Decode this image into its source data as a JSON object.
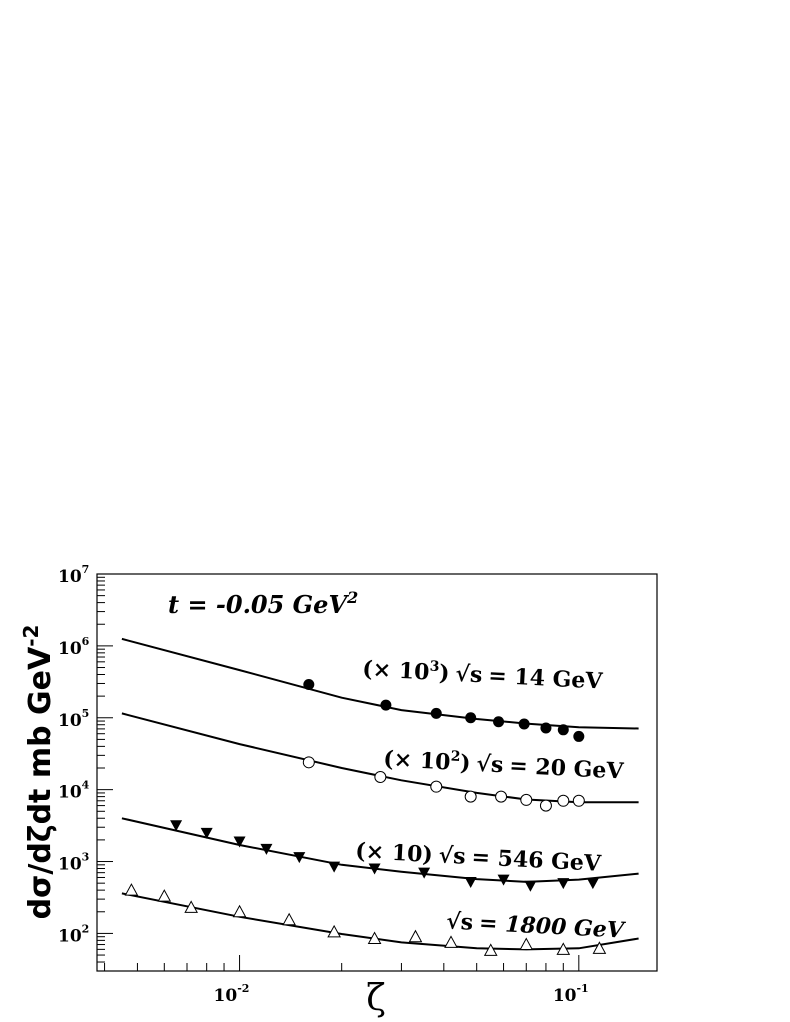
{
  "chart_data": {
    "type": "scatter",
    "title": "",
    "xlabel": "ζ",
    "ylabel": "dσ/dζdt mb GeV",
    "ylabel_sup": "-2",
    "x_scale": "log",
    "y_scale": "log",
    "xlim": [
      0.0038,
      0.17
    ],
    "ylim": [
      30,
      10000000
    ],
    "x_ticks": [
      {
        "value": 0.01,
        "base": "10",
        "exp": "-2"
      },
      {
        "value": 0.1,
        "base": "10",
        "exp": "-1"
      }
    ],
    "y_ticks": [
      {
        "value": 100,
        "base": "10",
        "exp": "2"
      },
      {
        "value": 1000,
        "base": "10",
        "exp": "3"
      },
      {
        "value": 10000,
        "base": "10",
        "exp": "4"
      },
      {
        "value": 100000,
        "base": "10",
        "exp": "5"
      },
      {
        "value": 1000000,
        "base": "10",
        "exp": "6"
      },
      {
        "value": 10000000,
        "base": "10",
        "exp": "7"
      }
    ],
    "grid": false,
    "annotation": {
      "text": "t = -0.05 GeV",
      "sup": "2"
    },
    "series": [
      {
        "label": {
          "mult_base": "(× 10",
          "mult_exp": "3",
          "mult_close": ")",
          "sqrt": "√s",
          "energy": "= 14 GeV"
        },
        "marker": "filled-circle",
        "points": [
          [
            0.016,
            290000
          ],
          [
            0.027,
            150000
          ],
          [
            0.038,
            115000
          ],
          [
            0.048,
            100000
          ],
          [
            0.058,
            88000
          ],
          [
            0.069,
            82000
          ],
          [
            0.08,
            72000
          ],
          [
            0.09,
            68000
          ],
          [
            0.1,
            55000
          ]
        ],
        "curve": [
          [
            0.0045,
            1250000
          ],
          [
            0.01,
            460000
          ],
          [
            0.02,
            190000
          ],
          [
            0.03,
            128000
          ],
          [
            0.05,
            96000
          ],
          [
            0.07,
            83000
          ],
          [
            0.1,
            74000
          ],
          [
            0.15,
            71000
          ]
        ]
      },
      {
        "label": {
          "mult_base": "(× 10",
          "mult_exp": "2",
          "mult_close": ")",
          "sqrt": "√s",
          "energy": "= 20 GeV"
        },
        "marker": "open-circle",
        "points": [
          [
            0.016,
            24000
          ],
          [
            0.026,
            15000
          ],
          [
            0.038,
            11000
          ],
          [
            0.048,
            8000
          ],
          [
            0.059,
            8000
          ],
          [
            0.07,
            7200
          ],
          [
            0.08,
            6000
          ],
          [
            0.09,
            7000
          ],
          [
            0.1,
            7000
          ]
        ],
        "curve": [
          [
            0.0045,
            115000
          ],
          [
            0.01,
            43000
          ],
          [
            0.02,
            20000
          ],
          [
            0.03,
            13500
          ],
          [
            0.05,
            9000
          ],
          [
            0.07,
            7300
          ],
          [
            0.1,
            6700
          ],
          [
            0.15,
            6700
          ]
        ]
      },
      {
        "label": {
          "mult_base": "(× 10)",
          "mult_exp": "",
          "mult_close": "",
          "sqrt": "√s",
          "energy": "= 546 GeV"
        },
        "marker": "filled-triangle-down",
        "points": [
          [
            0.0065,
            3200
          ],
          [
            0.008,
            2500
          ],
          [
            0.01,
            1900
          ],
          [
            0.012,
            1500
          ],
          [
            0.015,
            1150
          ],
          [
            0.019,
            850
          ],
          [
            0.025,
            800
          ],
          [
            0.035,
            700
          ],
          [
            0.048,
            520
          ],
          [
            0.06,
            560
          ],
          [
            0.072,
            460
          ],
          [
            0.09,
            500
          ],
          [
            0.11,
            500
          ]
        ],
        "curve": [
          [
            0.0045,
            4000
          ],
          [
            0.01,
            1700
          ],
          [
            0.02,
            900
          ],
          [
            0.03,
            720
          ],
          [
            0.05,
            570
          ],
          [
            0.07,
            520
          ],
          [
            0.1,
            560
          ],
          [
            0.15,
            680
          ]
        ]
      },
      {
        "label": {
          "mult_base": "",
          "mult_exp": "",
          "mult_close": "",
          "sqrt": "√s",
          "energy": "= 1800 GeV"
        },
        "marker": "open-triangle-up",
        "points": [
          [
            0.0048,
            400
          ],
          [
            0.006,
            330
          ],
          [
            0.0072,
            230
          ],
          [
            0.01,
            200
          ],
          [
            0.014,
            155
          ],
          [
            0.019,
            105
          ],
          [
            0.025,
            85
          ],
          [
            0.033,
            90
          ],
          [
            0.042,
            75
          ],
          [
            0.055,
            58
          ],
          [
            0.07,
            70
          ],
          [
            0.09,
            60
          ],
          [
            0.115,
            62
          ]
        ],
        "curve": [
          [
            0.0045,
            360
          ],
          [
            0.01,
            170
          ],
          [
            0.02,
            98
          ],
          [
            0.03,
            75
          ],
          [
            0.05,
            62
          ],
          [
            0.07,
            60
          ],
          [
            0.1,
            62
          ],
          [
            0.15,
            85
          ]
        ]
      }
    ]
  }
}
